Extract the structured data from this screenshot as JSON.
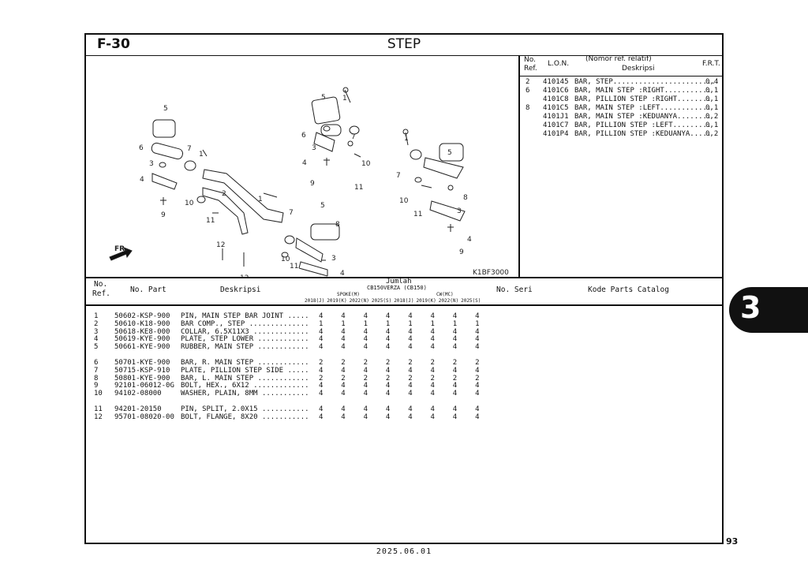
{
  "header": {
    "code": "F-30",
    "title": "STEP"
  },
  "illustration": {
    "code": "K1BF3000",
    "direction_label": "FR.",
    "callouts": [
      "1",
      "2",
      "3",
      "4",
      "5",
      "6",
      "7",
      "8",
      "9",
      "10",
      "11",
      "12"
    ]
  },
  "ref_table": {
    "headers": {
      "no": "No.",
      "ref": "Ref.",
      "lon": "L.O.N.",
      "nomor": "(Nomor ref. relatif)",
      "deskripsi": "Deskripsi",
      "frt": "F.R.T."
    },
    "rows": [
      {
        "no": "2",
        "lon": "410145",
        "desc": "BAR, STEP........................",
        "frt": "0,4"
      },
      {
        "no": "6",
        "lon": "4101C6",
        "desc": "BAR, MAIN STEP :RIGHT...........",
        "frt": "0,1"
      },
      {
        "no": "",
        "lon": "4101C8",
        "desc": "BAR, PILLION STEP :RIGHT........",
        "frt": "0,1"
      },
      {
        "no": "8",
        "lon": "4101C5",
        "desc": "BAR, MAIN STEP :LEFT............",
        "frt": "0,1"
      },
      {
        "no": "",
        "lon": "4101J1",
        "desc": "BAR, MAIN STEP :KEDUANYA........",
        "frt": "0,2"
      },
      {
        "no": "",
        "lon": "4101C7",
        "desc": "BAR, PILLION STEP :LEFT.........",
        "frt": "0,1"
      },
      {
        "no": "",
        "lon": "4101P4",
        "desc": "BAR, PILLION STEP :KEDUANYA.....",
        "frt": "0,2"
      }
    ]
  },
  "parts_table": {
    "headers": {
      "no": "No.",
      "ref": "Ref.",
      "no_part": "No. Part",
      "deskripsi": "Deskripsi",
      "jumlah": "Jumlah",
      "model": "CB150VERZA (CB150)",
      "spoke": "SPOKE(M)",
      "cw": "CW(MC)",
      "no_seri": "No. Seri",
      "kode": "Kode Parts Catalog",
      "years": [
        "2018(J)",
        "2019(K)",
        "2022(N)",
        "2025(S)",
        "2018(J)",
        "2019(K)",
        "2022(N)",
        "2025(S)"
      ]
    },
    "rows": [
      {
        "ref": "1",
        "part": "50602-KSP-900",
        "desc": "PIN, MAIN STEP BAR JOINT .....",
        "qty": [
          "4",
          "4",
          "4",
          "4",
          "4",
          "4",
          "4",
          "4"
        ]
      },
      {
        "ref": "2",
        "part": "50610-K18-900",
        "desc": "BAR COMP., STEP ..............",
        "qty": [
          "1",
          "1",
          "1",
          "1",
          "1",
          "1",
          "1",
          "1"
        ]
      },
      {
        "ref": "3",
        "part": "50618-KE8-000",
        "desc": "COLLAR, 6.5X11X3 .............",
        "qty": [
          "4",
          "4",
          "4",
          "4",
          "4",
          "4",
          "4",
          "4"
        ]
      },
      {
        "ref": "4",
        "part": "50619-KYE-900",
        "desc": "PLATE, STEP LOWER ............",
        "qty": [
          "4",
          "4",
          "4",
          "4",
          "4",
          "4",
          "4",
          "4"
        ]
      },
      {
        "ref": "5",
        "part": "50661-KYE-900",
        "desc": "RUBBER, MAIN STEP ............",
        "qty": [
          "4",
          "4",
          "4",
          "4",
          "4",
          "4",
          "4",
          "4"
        ]
      },
      {
        "ref": "6",
        "part": "50701-KYE-900",
        "desc": "BAR, R. MAIN STEP ............",
        "qty": [
          "2",
          "2",
          "2",
          "2",
          "2",
          "2",
          "2",
          "2"
        ]
      },
      {
        "ref": "7",
        "part": "50715-KSP-910",
        "desc": "PLATE, PILLION STEP SIDE .....",
        "qty": [
          "4",
          "4",
          "4",
          "4",
          "4",
          "4",
          "4",
          "4"
        ]
      },
      {
        "ref": "8",
        "part": "50801-KYE-900",
        "desc": "BAR, L. MAIN STEP ............",
        "qty": [
          "2",
          "2",
          "2",
          "2",
          "2",
          "2",
          "2",
          "2"
        ]
      },
      {
        "ref": "9",
        "part": "92101-06012-0G",
        "desc": "BOLT, HEX., 6X12 .............",
        "qty": [
          "4",
          "4",
          "4",
          "4",
          "4",
          "4",
          "4",
          "4"
        ]
      },
      {
        "ref": "10",
        "part": "94102-08000",
        "desc": "WASHER, PLAIN, 8MM ...........",
        "qty": [
          "4",
          "4",
          "4",
          "4",
          "4",
          "4",
          "4",
          "4"
        ]
      },
      {
        "ref": "11",
        "part": "94201-20150",
        "desc": "PIN, SPLIT, 2.0X15 ...........",
        "qty": [
          "4",
          "4",
          "4",
          "4",
          "4",
          "4",
          "4",
          "4"
        ]
      },
      {
        "ref": "12",
        "part": "95701-08020-00",
        "desc": "BOLT, FLANGE, 8X20 ...........",
        "qty": [
          "4",
          "4",
          "4",
          "4",
          "4",
          "4",
          "4",
          "4"
        ]
      }
    ]
  },
  "section_tab": "3",
  "page_number": "93",
  "date": "2025.06.01"
}
